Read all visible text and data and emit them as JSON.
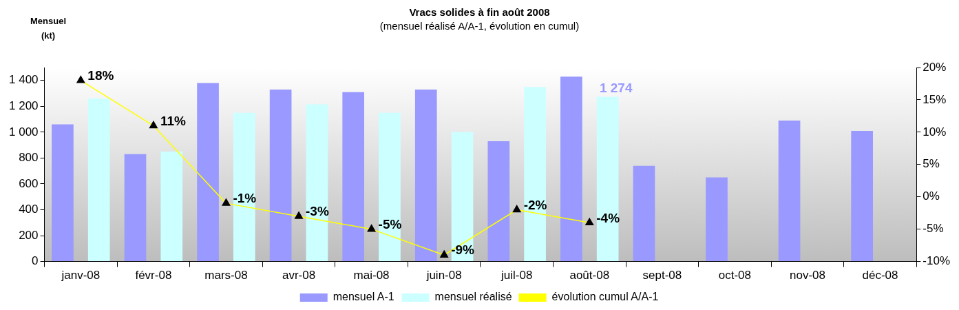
{
  "chart_data": {
    "type": "bar",
    "title": "Vracs solides à fin août 2008",
    "subtitle": "(mensuel réalisé A/A-1, évolution en cumul)",
    "ylabel": "Mensuel (kt)",
    "categories": [
      "janv-08",
      "févr-08",
      "mars-08",
      "avr-08",
      "mai-08",
      "juin-08",
      "juil-08",
      "août-08",
      "sept-08",
      "oct-08",
      "nov-08",
      "déc-08"
    ],
    "series": [
      {
        "name": "mensuel A-1",
        "color": "#9999ff",
        "values": [
          1060,
          830,
          1380,
          1330,
          1310,
          1330,
          930,
          1430,
          740,
          650,
          1090,
          1010
        ]
      },
      {
        "name": "mensuel réalisé",
        "color": "#ccffff",
        "values": [
          1260,
          850,
          1150,
          1215,
          1150,
          1000,
          1350,
          1274,
          null,
          null,
          null,
          null
        ],
        "value_labels": [
          null,
          null,
          null,
          null,
          null,
          null,
          null,
          "1 274",
          null,
          null,
          null,
          null
        ]
      },
      {
        "name": "évolution cumul A/A-1",
        "type": "line",
        "axis": "y2",
        "color": "#ffff00",
        "marker": "triangle",
        "values": [
          18,
          11,
          -1,
          -3,
          -5,
          -9,
          -2,
          -4,
          null,
          null,
          null,
          null
        ],
        "value_labels": [
          "18%",
          "11%",
          "-1%",
          "-3%",
          "-5%",
          "-9%",
          "-2%",
          "-4%",
          null,
          null,
          null,
          null
        ]
      }
    ],
    "ylim": [
      0,
      1500
    ],
    "yticks": [
      0,
      200,
      400,
      600,
      800,
      {
        "value": 1000,
        "label": "1 000"
      },
      {
        "value": 1200,
        "label": "1 200"
      },
      {
        "value": 1400,
        "label": "1 400"
      }
    ],
    "y2lim": [
      -10,
      20
    ],
    "y2ticks": [
      {
        "value": -10,
        "label": "-10%"
      },
      {
        "value": -5,
        "label": "-5%"
      },
      {
        "value": 0,
        "label": "0%"
      },
      {
        "value": 5,
        "label": "5%"
      },
      {
        "value": 10,
        "label": "10%"
      },
      {
        "value": 15,
        "label": "15%"
      },
      {
        "value": 20,
        "label": "20%"
      }
    ],
    "grid": false,
    "legend": "bottom"
  }
}
